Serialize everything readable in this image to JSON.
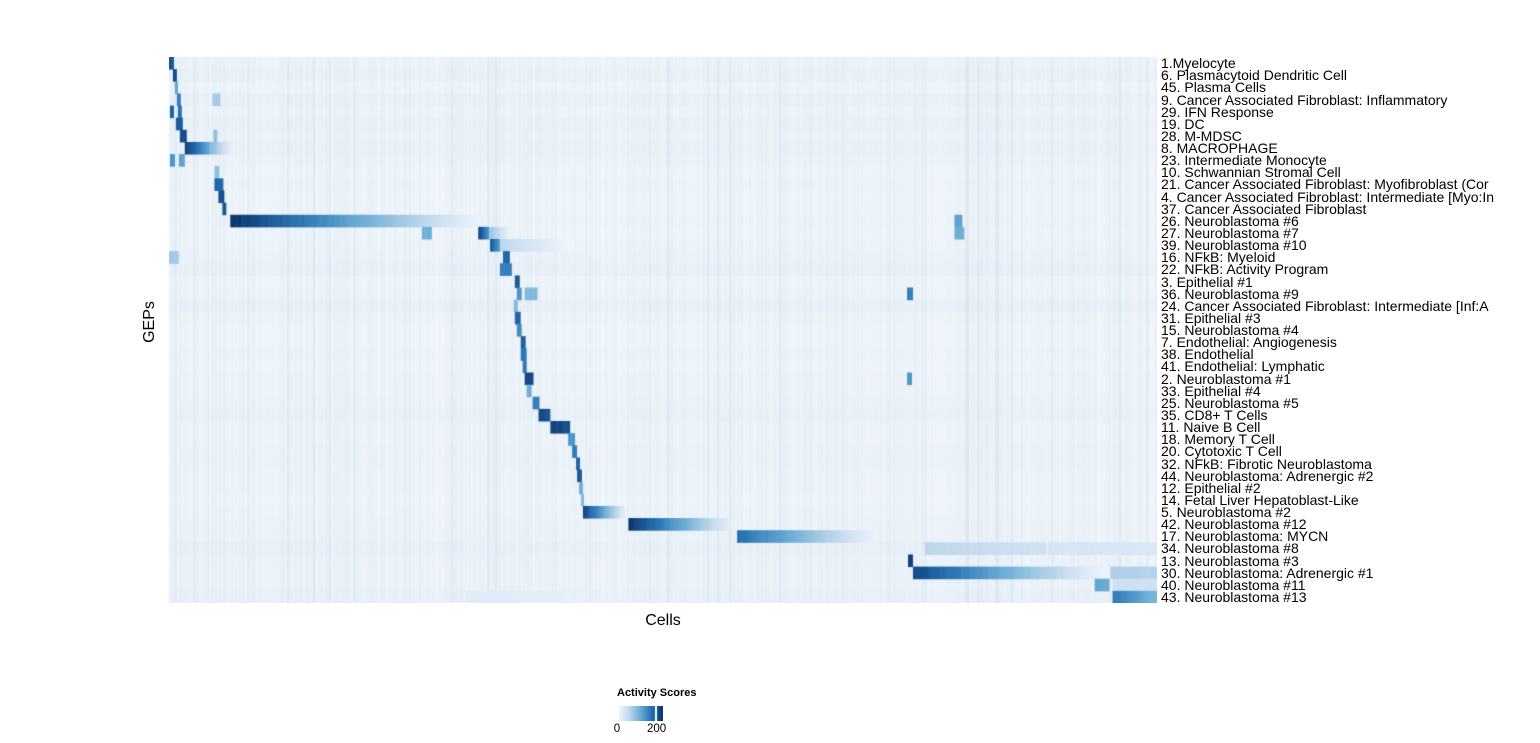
{
  "chart_data": {
    "type": "heatmap",
    "title": "",
    "xlabel": "Cells",
    "ylabel": "GEPs",
    "background": "#f3f8fc",
    "stripe_color": [
      130,
      165,
      205
    ],
    "colormap": {
      "name": "Blues",
      "stops": [
        "#f7fbff",
        "#c6dbef",
        "#6baed6",
        "#2171b5",
        "#08306b"
      ]
    },
    "legend": {
      "title": "Activity Scores",
      "ticks": [
        "0",
        "200"
      ],
      "tick_positions": [
        0,
        0.86
      ],
      "value_range": [
        0,
        200
      ]
    },
    "rows": [
      {
        "label": "1.Myelocyte",
        "tint": 0.03,
        "segments": [
          [
            0.0,
            0.005,
            0.85,
            0.85
          ]
        ]
      },
      {
        "label": "6. Plasmacytoid Dendritic Cell",
        "tint": 0.05,
        "segments": [
          [
            0.004,
            0.008,
            0.9,
            0.9
          ]
        ]
      },
      {
        "label": "45. Plasma Cells",
        "tint": 0.02,
        "segments": [
          [
            0.006,
            0.009,
            0.55,
            0.55
          ]
        ]
      },
      {
        "label": "9. Cancer Associated Fibroblast: Inflammatory",
        "tint": 0.05,
        "segments": [
          [
            0.008,
            0.012,
            0.7,
            0.7
          ],
          [
            0.044,
            0.052,
            0.35,
            0.35
          ]
        ]
      },
      {
        "label": "29. IFN Response",
        "tint": 0.03,
        "segments": [
          [
            0.001,
            0.005,
            0.8,
            0.8
          ],
          [
            0.009,
            0.013,
            0.75,
            0.75
          ]
        ]
      },
      {
        "label": "19. DC",
        "tint": 0.05,
        "segments": [
          [
            0.007,
            0.014,
            0.85,
            0.85
          ]
        ]
      },
      {
        "label": "28. M-MDSC",
        "tint": 0.04,
        "segments": [
          [
            0.011,
            0.018,
            0.9,
            0.9
          ],
          [
            0.045,
            0.049,
            0.4,
            0.4
          ]
        ]
      },
      {
        "label": "8. MACROPHAGE",
        "tint": 0.05,
        "segments": [
          [
            0.016,
            0.042,
            0.97,
            0.5
          ],
          [
            0.042,
            0.065,
            0.45,
            0.06
          ]
        ]
      },
      {
        "label": "23. Intermediate Monocyte",
        "tint": 0.04,
        "segments": [
          [
            0.001,
            0.006,
            0.6,
            0.6
          ],
          [
            0.01,
            0.016,
            0.55,
            0.55
          ]
        ]
      },
      {
        "label": "10. Schwannian Stromal Cell",
        "tint": 0.02,
        "segments": [
          [
            0.046,
            0.051,
            0.4,
            0.4
          ]
        ]
      },
      {
        "label": "21. Cancer Associated Fibroblast: Myofibroblast (Cor",
        "tint": 0.03,
        "segments": [
          [
            0.046,
            0.055,
            0.8,
            0.8
          ]
        ]
      },
      {
        "label": "4. Cancer Associated Fibroblast: Intermediate [Myo:In",
        "tint": 0.02,
        "segments": [
          [
            0.05,
            0.056,
            0.9,
            0.9
          ]
        ]
      },
      {
        "label": "37. Cancer Associated Fibroblast",
        "tint": 0.02,
        "segments": [
          [
            0.054,
            0.058,
            0.85,
            0.85
          ]
        ]
      },
      {
        "label": "26. Neuroblastoma #6",
        "tint": 0.03,
        "segments": [
          [
            0.062,
            0.315,
            1.0,
            0.06
          ],
          [
            0.795,
            0.803,
            0.55,
            0.55
          ]
        ]
      },
      {
        "label": "27. Neuroblastoma #7",
        "tint": 0.02,
        "segments": [
          [
            0.256,
            0.266,
            0.5,
            0.5
          ],
          [
            0.313,
            0.324,
            0.95,
            0.6
          ],
          [
            0.324,
            0.345,
            0.4,
            0.05
          ],
          [
            0.795,
            0.805,
            0.5,
            0.5
          ]
        ]
      },
      {
        "label": "39. Neuroblastoma #10",
        "tint": 0.03,
        "segments": [
          [
            0.325,
            0.335,
            0.9,
            0.55
          ],
          [
            0.335,
            0.41,
            0.28,
            0.02
          ]
        ]
      },
      {
        "label": "16. NFkB: Myeloid",
        "tint": 0.04,
        "segments": [
          [
            0.0,
            0.01,
            0.35,
            0.35
          ],
          [
            0.338,
            0.345,
            0.8,
            0.8
          ]
        ]
      },
      {
        "label": "22. NFkB: Activity Program",
        "tint": 0.06,
        "segments": [
          [
            0.335,
            0.347,
            0.7,
            0.7
          ]
        ]
      },
      {
        "label": "3. Epithelial #1",
        "tint": 0.02,
        "segments": [
          [
            0.35,
            0.355,
            0.85,
            0.85
          ]
        ]
      },
      {
        "label": "36. Neuroblastoma #9",
        "tint": 0.03,
        "segments": [
          [
            0.352,
            0.357,
            0.6,
            0.6
          ],
          [
            0.36,
            0.373,
            0.45,
            0.45
          ],
          [
            0.747,
            0.753,
            0.7,
            0.7
          ]
        ]
      },
      {
        "label": "24. Cancer Associated Fibroblast: Intermediate [Inf:A",
        "tint": 0.06,
        "segments": [
          [
            0.349,
            0.353,
            0.45,
            0.45
          ]
        ]
      },
      {
        "label": "31. Epithelial #3",
        "tint": 0.03,
        "segments": [
          [
            0.35,
            0.356,
            0.8,
            0.8
          ]
        ]
      },
      {
        "label": "15. Neuroblastoma #4",
        "tint": 0.02,
        "segments": [
          [
            0.352,
            0.357,
            0.65,
            0.65
          ]
        ]
      },
      {
        "label": "7. Endothelial: Angiogenesis",
        "tint": 0.02,
        "segments": [
          [
            0.356,
            0.361,
            0.85,
            0.85
          ]
        ]
      },
      {
        "label": "38. Endothelial",
        "tint": 0.03,
        "segments": [
          [
            0.356,
            0.362,
            0.75,
            0.75
          ]
        ]
      },
      {
        "label": "41. Endothelial: Lymphatic",
        "tint": 0.02,
        "segments": [
          [
            0.358,
            0.362,
            0.75,
            0.75
          ]
        ]
      },
      {
        "label": "2. Neuroblastoma #1",
        "tint": 0.03,
        "segments": [
          [
            0.36,
            0.369,
            0.95,
            0.9
          ],
          [
            0.747,
            0.752,
            0.6,
            0.6
          ]
        ]
      },
      {
        "label": "33. Epithelial #4",
        "tint": 0.03,
        "segments": [
          [
            0.362,
            0.367,
            0.5,
            0.5
          ]
        ]
      },
      {
        "label": "25. Neuroblastoma #5",
        "tint": 0.04,
        "segments": [
          [
            0.368,
            0.375,
            0.7,
            0.7
          ]
        ]
      },
      {
        "label": "35. CD8+ T Cells",
        "tint": 0.05,
        "segments": [
          [
            0.374,
            0.386,
            0.92,
            0.85
          ]
        ]
      },
      {
        "label": "11. Naive B Cell",
        "tint": 0.03,
        "segments": [
          [
            0.386,
            0.406,
            0.95,
            0.88
          ]
        ]
      },
      {
        "label": "18. Memory T Cell",
        "tint": 0.03,
        "segments": [
          [
            0.404,
            0.411,
            0.6,
            0.6
          ]
        ]
      },
      {
        "label": "20. Cytotoxic T Cell",
        "tint": 0.04,
        "segments": [
          [
            0.408,
            0.413,
            0.7,
            0.7
          ]
        ]
      },
      {
        "label": "32. NFkB: Fibrotic Neuroblastoma",
        "tint": 0.04,
        "segments": [
          [
            0.412,
            0.416,
            0.8,
            0.8
          ]
        ]
      },
      {
        "label": "44. Neuroblastoma: Adrenergic #2",
        "tint": 0.03,
        "segments": [
          [
            0.413,
            0.418,
            0.85,
            0.85
          ]
        ]
      },
      {
        "label": "12. Epithelial #2",
        "tint": 0.03,
        "segments": [
          [
            0.415,
            0.419,
            0.5,
            0.5
          ]
        ]
      },
      {
        "label": "14. Fetal Liver Hepatoblast-Like",
        "tint": 0.02,
        "segments": [
          [
            0.417,
            0.42,
            0.45,
            0.45
          ]
        ]
      },
      {
        "label": "5. Neuroblastoma #2",
        "tint": 0.03,
        "segments": [
          [
            0.419,
            0.462,
            0.95,
            0.08
          ]
        ]
      },
      {
        "label": "42. Neuroblastoma #12",
        "tint": 0.04,
        "segments": [
          [
            0.465,
            0.568,
            1.0,
            0.1
          ]
        ]
      },
      {
        "label": "17. Neuroblastoma: MYCN",
        "tint": 0.04,
        "segments": [
          [
            0.575,
            0.715,
            0.78,
            0.06
          ]
        ]
      },
      {
        "label": "34. Neuroblastoma #8",
        "tint": 0.06,
        "segments": [
          [
            0.765,
            0.888,
            0.28,
            0.2
          ],
          [
            0.89,
            1.0,
            0.18,
            0.15
          ]
        ]
      },
      {
        "label": "13. Neuroblastoma #3",
        "tint": 0.04,
        "segments": [
          [
            0.748,
            0.753,
            0.95,
            0.95
          ]
        ]
      },
      {
        "label": "30. Neuroblastoma: Adrenergic #1",
        "tint": 0.04,
        "segments": [
          [
            0.753,
            0.945,
            0.92,
            0.06
          ],
          [
            0.953,
            1.0,
            0.32,
            0.3
          ]
        ]
      },
      {
        "label": "40. Neuroblastoma #11",
        "tint": 0.04,
        "segments": [
          [
            0.937,
            0.952,
            0.55,
            0.5
          ],
          [
            0.955,
            1.0,
            0.22,
            0.2
          ]
        ]
      },
      {
        "label": "43. Neuroblastoma #13",
        "tint": 0.06,
        "segments": [
          [
            0.3,
            0.4,
            0.12,
            0.1
          ],
          [
            0.955,
            1.0,
            0.72,
            0.45
          ]
        ]
      }
    ]
  }
}
